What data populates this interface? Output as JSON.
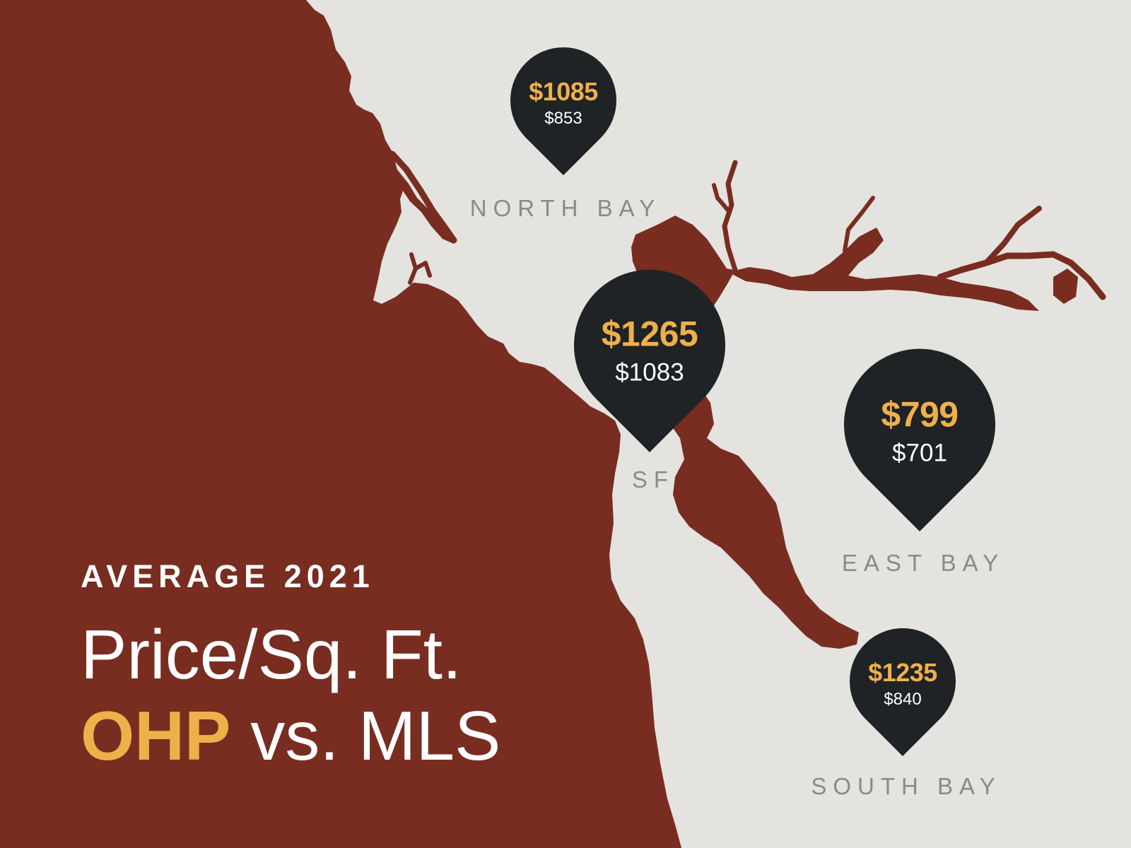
{
  "header": {
    "subtitle": "AVERAGE 2021",
    "title": "Price/Sq. Ft.",
    "ohp_label": "OHP",
    "vs_label": "vs. MLS"
  },
  "regions": [
    {
      "id": "north-bay",
      "name": "NORTH BAY",
      "ohp": "$1085",
      "mls": "$853"
    },
    {
      "id": "sf",
      "name": "SF",
      "ohp": "$1265",
      "mls": "$1083"
    },
    {
      "id": "east-bay",
      "name": "EAST BAY",
      "ohp": "$799",
      "mls": "$701"
    },
    {
      "id": "south-bay",
      "name": "SOUTH BAY",
      "ohp": "$1235",
      "mls": "$840"
    }
  ],
  "colors": {
    "land": "#e4e3df",
    "water": "#782d20",
    "pin": "#1f2326",
    "ohp": "#efb04a",
    "mls": "#ffffff",
    "region_label": "#8a8a88"
  }
}
